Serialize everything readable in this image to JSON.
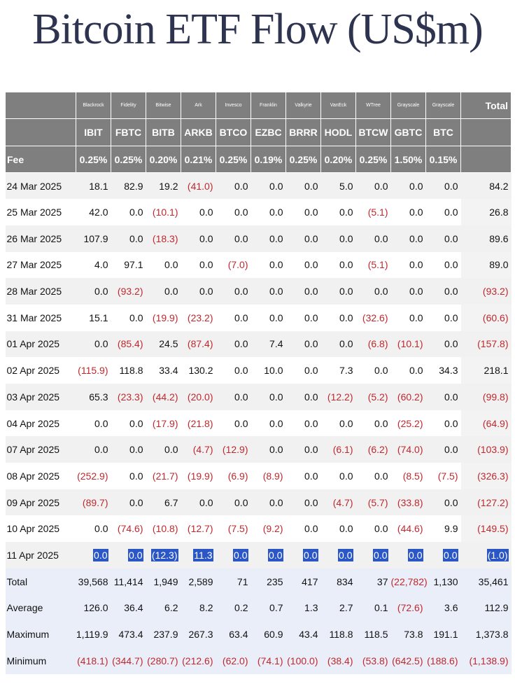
{
  "title": "Bitcoin ETF Flow (US$m)",
  "colors": {
    "header_bg": "#7f7f7f",
    "negative": "#c0282d",
    "selection": "#2a56c6",
    "summary_bg": "#e9eef8"
  },
  "header": {
    "issuers": [
      "Blackrock",
      "Fidelity",
      "Bitwise",
      "Ark",
      "Invesco",
      "Franklin",
      "Valkyrie",
      "VanEck",
      "WTree",
      "Grayscale",
      "Grayscale"
    ],
    "total_label": "Total",
    "tickers": [
      "IBIT",
      "FBTC",
      "BITB",
      "ARKB",
      "BTCO",
      "EZBC",
      "BRRR",
      "HODL",
      "BTCW",
      "GBTC",
      "BTC"
    ],
    "fee_label": "Fee",
    "fees": [
      "0.25%",
      "0.25%",
      "0.20%",
      "0.21%",
      "0.25%",
      "0.19%",
      "0.25%",
      "0.20%",
      "0.25%",
      "1.50%",
      "0.15%"
    ]
  },
  "rows": [
    {
      "date": "24 Mar 2025",
      "values": [
        "18.1",
        "82.9",
        "19.2",
        "(41.0)",
        "0.0",
        "0.0",
        "0.0",
        "5.0",
        "0.0",
        "0.0",
        "0.0"
      ],
      "total": "84.2"
    },
    {
      "date": "25 Mar 2025",
      "values": [
        "42.0",
        "0.0",
        "(10.1)",
        "0.0",
        "0.0",
        "0.0",
        "0.0",
        "0.0",
        "(5.1)",
        "0.0",
        "0.0"
      ],
      "total": "26.8"
    },
    {
      "date": "26 Mar 2025",
      "values": [
        "107.9",
        "0.0",
        "(18.3)",
        "0.0",
        "0.0",
        "0.0",
        "0.0",
        "0.0",
        "0.0",
        "0.0",
        "0.0"
      ],
      "total": "89.6"
    },
    {
      "date": "27 Mar 2025",
      "values": [
        "4.0",
        "97.1",
        "0.0",
        "0.0",
        "(7.0)",
        "0.0",
        "0.0",
        "0.0",
        "(5.1)",
        "0.0",
        "0.0"
      ],
      "total": "89.0"
    },
    {
      "date": "28 Mar 2025",
      "values": [
        "0.0",
        "(93.2)",
        "0.0",
        "0.0",
        "0.0",
        "0.0",
        "0.0",
        "0.0",
        "0.0",
        "0.0",
        "0.0"
      ],
      "total": "(93.2)"
    },
    {
      "date": "31 Mar 2025",
      "values": [
        "15.1",
        "0.0",
        "(19.9)",
        "(23.2)",
        "0.0",
        "0.0",
        "0.0",
        "0.0",
        "(32.6)",
        "0.0",
        "0.0"
      ],
      "total": "(60.6)"
    },
    {
      "date": "01 Apr 2025",
      "values": [
        "0.0",
        "(85.4)",
        "24.5",
        "(87.4)",
        "0.0",
        "7.4",
        "0.0",
        "0.0",
        "(6.8)",
        "(10.1)",
        "0.0"
      ],
      "total": "(157.8)"
    },
    {
      "date": "02 Apr 2025",
      "values": [
        "(115.9)",
        "118.8",
        "33.4",
        "130.2",
        "0.0",
        "10.0",
        "0.0",
        "7.3",
        "0.0",
        "0.0",
        "34.3"
      ],
      "total": "218.1"
    },
    {
      "date": "03 Apr 2025",
      "values": [
        "65.3",
        "(23.3)",
        "(44.2)",
        "(20.0)",
        "0.0",
        "0.0",
        "0.0",
        "(12.2)",
        "(5.2)",
        "(60.2)",
        "0.0"
      ],
      "total": "(99.8)"
    },
    {
      "date": "04 Apr 2025",
      "values": [
        "0.0",
        "0.0",
        "(17.9)",
        "(21.8)",
        "0.0",
        "0.0",
        "0.0",
        "0.0",
        "0.0",
        "(25.2)",
        "0.0"
      ],
      "total": "(64.9)"
    },
    {
      "date": "07 Apr 2025",
      "values": [
        "0.0",
        "0.0",
        "0.0",
        "(4.7)",
        "(12.9)",
        "0.0",
        "0.0",
        "(6.1)",
        "(6.2)",
        "(74.0)",
        "0.0"
      ],
      "total": "(103.9)"
    },
    {
      "date": "08 Apr 2025",
      "values": [
        "(252.9)",
        "0.0",
        "(21.7)",
        "(19.9)",
        "(6.9)",
        "(8.9)",
        "0.0",
        "0.0",
        "0.0",
        "(8.5)",
        "(7.5)"
      ],
      "total": "(326.3)"
    },
    {
      "date": "09 Apr 2025",
      "values": [
        "(89.7)",
        "0.0",
        "6.7",
        "0.0",
        "0.0",
        "0.0",
        "0.0",
        "(4.7)",
        "(5.7)",
        "(33.8)",
        "0.0"
      ],
      "total": "(127.2)"
    },
    {
      "date": "10 Apr 2025",
      "values": [
        "0.0",
        "(74.6)",
        "(10.8)",
        "(12.7)",
        "(7.5)",
        "(9.2)",
        "0.0",
        "0.0",
        "0.0",
        "(44.6)",
        "9.9"
      ],
      "total": "(149.5)"
    },
    {
      "date": "11 Apr 2025",
      "values": [
        "0.0",
        "0.0",
        "(12.3)",
        "11.3",
        "0.0",
        "0.0",
        "0.0",
        "0.0",
        "0.0",
        "0.0",
        "0.0"
      ],
      "total": "(1.0)",
      "selected": true
    }
  ],
  "summary": [
    {
      "label": "Total",
      "values": [
        "39,568",
        "11,414",
        "1,949",
        "2,589",
        "71",
        "235",
        "417",
        "834",
        "37",
        "(22,782)",
        "1,130"
      ],
      "total": "35,461"
    },
    {
      "label": "Average",
      "values": [
        "126.0",
        "36.4",
        "6.2",
        "8.2",
        "0.2",
        "0.7",
        "1.3",
        "2.7",
        "0.1",
        "(72.6)",
        "3.6"
      ],
      "total": "112.9"
    },
    {
      "label": "Maximum",
      "values": [
        "1,119.9",
        "473.4",
        "237.9",
        "267.3",
        "63.4",
        "60.9",
        "43.4",
        "118.8",
        "118.5",
        "73.8",
        "191.1"
      ],
      "total": "1,373.8"
    },
    {
      "label": "Minimum",
      "values": [
        "(418.1)",
        "(344.7)",
        "(280.7)",
        "(212.6)",
        "(62.0)",
        "(74.1)",
        "(100.0)",
        "(38.4)",
        "(53.8)",
        "(642.5)",
        "(188.6)"
      ],
      "total": "(1,138.9)"
    }
  ]
}
